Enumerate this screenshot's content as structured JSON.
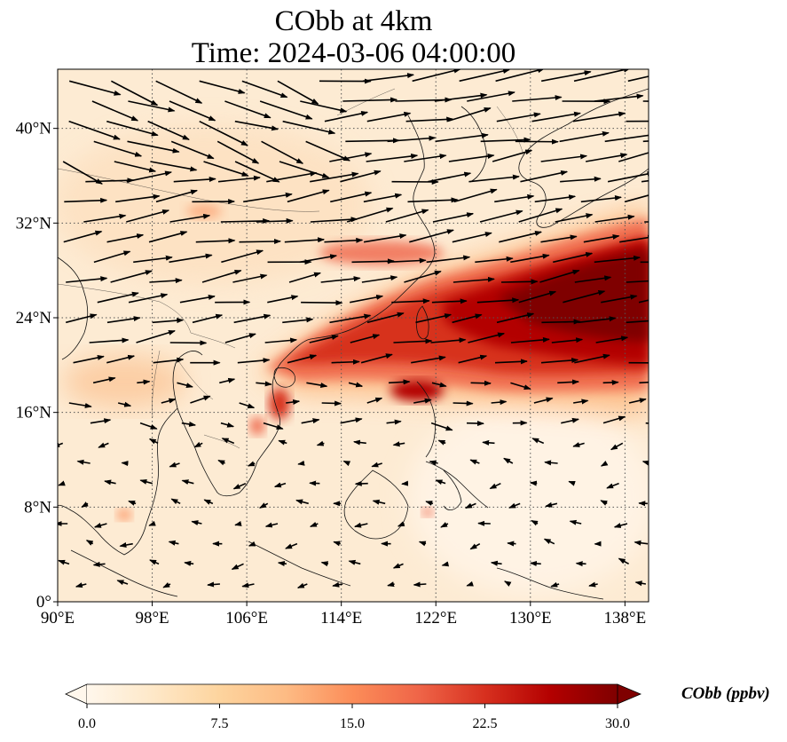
{
  "title": {
    "line1": "CObb at 4km",
    "line2": "Time: 2024-03-06 04:00:00"
  },
  "map": {
    "extent": {
      "lon_min": 90,
      "lon_max": 140,
      "lat_min": 0,
      "lat_max": 45
    },
    "gridlines": true,
    "gridline_style": "dotted",
    "x_ticks": [
      {
        "value": 90,
        "label": "90°E"
      },
      {
        "value": 98,
        "label": "98°E"
      },
      {
        "value": 106,
        "label": "106°E"
      },
      {
        "value": 114,
        "label": "114°E"
      },
      {
        "value": 122,
        "label": "122°E"
      },
      {
        "value": 130,
        "label": "130°E"
      },
      {
        "value": 138,
        "label": "138°E"
      }
    ],
    "y_ticks": [
      {
        "value": 0,
        "label": "0°"
      },
      {
        "value": 8,
        "label": "8°N"
      },
      {
        "value": 16,
        "label": "16°N"
      },
      {
        "value": 24,
        "label": "24°N"
      },
      {
        "value": 32,
        "label": "32°N"
      },
      {
        "value": 40,
        "label": "40°N"
      }
    ],
    "colormap": "OrRd",
    "vector_field": "wind arrows (black)",
    "plume": [
      {
        "lon": 108,
        "lat": 19,
        "v": 18
      },
      {
        "lon": 112,
        "lat": 21,
        "v": 22
      },
      {
        "lon": 116,
        "lat": 23,
        "v": 24
      },
      {
        "lon": 120,
        "lat": 25,
        "v": 26
      },
      {
        "lon": 124,
        "lat": 25.5,
        "v": 28
      },
      {
        "lon": 128,
        "lat": 26,
        "v": 30
      },
      {
        "lon": 132,
        "lat": 26.5,
        "v": 30
      },
      {
        "lon": 136,
        "lat": 27,
        "v": 30
      },
      {
        "lon": 139,
        "lat": 28,
        "v": 30
      },
      {
        "lon": 121,
        "lat": 18,
        "v": 22
      },
      {
        "lon": 116,
        "lat": 28,
        "v": 16
      },
      {
        "lon": 122,
        "lat": 29,
        "v": 18
      }
    ]
  },
  "colorbar": {
    "min": 0,
    "max": 30,
    "extend": "both",
    "ticks": [
      "0.0",
      "7.5",
      "15.0",
      "22.5",
      "30.0"
    ],
    "tick_values": [
      0,
      7.5,
      15,
      22.5,
      30
    ],
    "label": "CObb (ppbv)",
    "colors": [
      "#fff7ec",
      "#fee8c8",
      "#fdd49e",
      "#fdbb84",
      "#fc8d59",
      "#ef6548",
      "#d7301f",
      "#b30000",
      "#7f0000"
    ]
  }
}
